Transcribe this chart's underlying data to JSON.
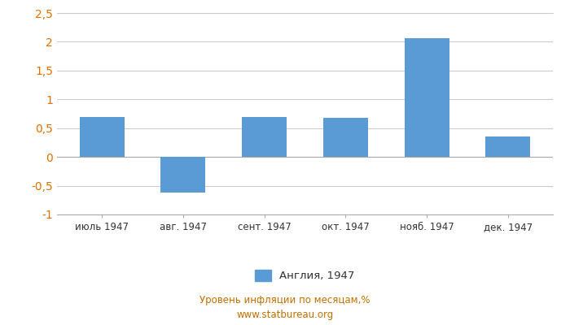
{
  "categories": [
    "июль 1947",
    "авг. 1947",
    "сент. 1947",
    "окт. 1947",
    "нояб. 1947",
    "дек. 1947"
  ],
  "values": [
    0.7,
    -0.62,
    0.7,
    0.68,
    2.06,
    0.35
  ],
  "bar_color": "#5b9bd5",
  "ylim": [
    -1.0,
    2.5
  ],
  "yticks": [
    -1.0,
    -0.5,
    0.0,
    0.5,
    1.0,
    1.5,
    2.0,
    2.5
  ],
  "ytick_labels": [
    "-1",
    "-0,5",
    "0",
    "0,5",
    "1",
    "1,5",
    "2",
    "2,5"
  ],
  "legend_label": "Англия, 1947",
  "footer_line1": "Уровень инфляции по месяцам,%",
  "footer_line2": "www.statbureau.org",
  "background_color": "#ffffff",
  "grid_color": "#cccccc",
  "bar_width": 0.55,
  "ytick_color": "#e07000",
  "footer_color": "#c07000",
  "spine_color": "#aaaaaa",
  "xtick_color": "#333333"
}
